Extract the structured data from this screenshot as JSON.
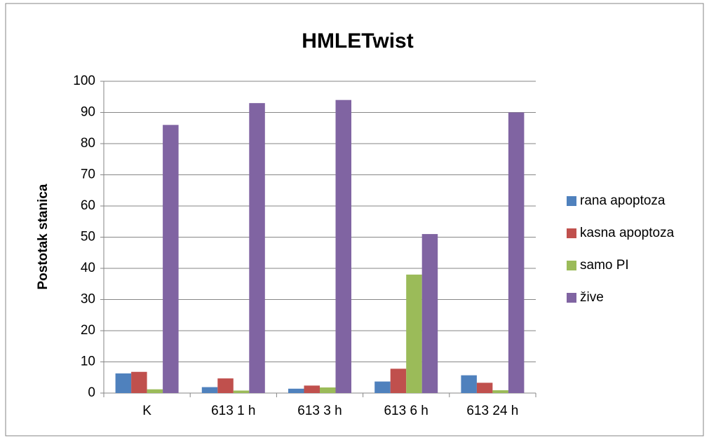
{
  "chart_data": {
    "type": "bar",
    "title": "HMLETwist",
    "y_label": "Postotak stanica",
    "categories": [
      "K",
      "613 1 h",
      "613 3 h",
      "613 6 h",
      "613 24 h"
    ],
    "series": [
      {
        "name": "rana apoptoza",
        "color": "#4f81bd",
        "values": [
          6.3,
          1.9,
          1.4,
          3.7,
          5.7
        ]
      },
      {
        "name": "kasna apoptoza",
        "color": "#c0504d",
        "values": [
          6.8,
          4.7,
          2.4,
          7.8,
          3.3
        ]
      },
      {
        "name": "samo PI",
        "color": "#9bbb59",
        "values": [
          1.2,
          0.8,
          1.8,
          38,
          0.9
        ]
      },
      {
        "name": "žive",
        "color": "#8064a2",
        "values": [
          86,
          93,
          94,
          51,
          90
        ]
      }
    ],
    "ylim": [
      0,
      100
    ],
    "yticks": [
      0,
      10,
      20,
      30,
      40,
      50,
      60,
      70,
      80,
      90,
      100
    ],
    "grid": true,
    "legend": "right"
  }
}
